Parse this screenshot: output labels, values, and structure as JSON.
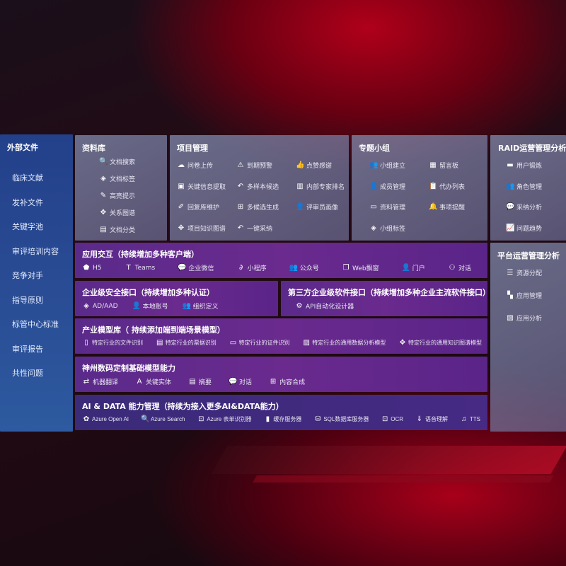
{
  "left": {
    "title": "外部文件",
    "items": [
      "临床文献",
      "发补文件",
      "关键字池",
      "审评培训内容",
      "竞争对手",
      "指导原则",
      "标管中心标准",
      "审评报告",
      "共性问题"
    ]
  },
  "library": {
    "title": "资料库",
    "items": [
      {
        "icon": "document-search-icon",
        "g": "🔍",
        "label": "文档搜索"
      },
      {
        "icon": "tag-icon",
        "g": "◈",
        "label": "文档标签"
      },
      {
        "icon": "pen-icon",
        "g": "✎",
        "label": "高亮提示"
      },
      {
        "icon": "graph-icon",
        "g": "✥",
        "label": "关系图谱"
      },
      {
        "icon": "documents-icon",
        "g": "▤",
        "label": "文档分类"
      }
    ]
  },
  "project": {
    "title": "项目管理",
    "items": [
      {
        "icon": "cloud-upload-icon",
        "g": "☁",
        "label": "问卷上传"
      },
      {
        "icon": "alarm-icon",
        "g": "⚠",
        "label": "到期预警"
      },
      {
        "icon": "thumbs-up-icon",
        "g": "👍",
        "label": "点赞感谢"
      },
      {
        "icon": "window-icon",
        "g": "▣",
        "label": "关键信息提取"
      },
      {
        "icon": "reply-icon",
        "g": "↶",
        "label": "多样本候选"
      },
      {
        "icon": "ranking-icon",
        "g": "▥",
        "label": "内部专家排名"
      },
      {
        "icon": "edit-icon",
        "g": "✐",
        "label": "回复库维护"
      },
      {
        "icon": "puzzle-icon",
        "g": "⊞",
        "label": "多候选生成"
      },
      {
        "icon": "user-icon",
        "g": "👤",
        "label": "评审员画像"
      },
      {
        "icon": "network-icon",
        "g": "✥",
        "label": "项目知识图谱"
      },
      {
        "icon": "reply-icon",
        "g": "↶",
        "label": "一键采纳"
      }
    ]
  },
  "group": {
    "title": "专题小组",
    "items": [
      {
        "icon": "users-icon",
        "g": "👥",
        "label": "小组建立"
      },
      {
        "icon": "bbs-icon",
        "g": "▦",
        "label": "留言板"
      },
      {
        "icon": "add-user-icon",
        "g": "👤",
        "label": "成员管理"
      },
      {
        "icon": "clipboard-icon",
        "g": "📋",
        "label": "代办列表"
      },
      {
        "icon": "folder-icon",
        "g": "▭",
        "label": "资料管理"
      },
      {
        "icon": "bell-icon",
        "g": "🔔",
        "label": "事项提醒"
      },
      {
        "icon": "tag-icon",
        "g": "◈",
        "label": "小组标签"
      }
    ]
  },
  "raid": {
    "title": "RAID运营管理分析",
    "items": [
      {
        "icon": "id-card-icon",
        "g": "▬",
        "label": "用户锻炼"
      },
      {
        "icon": "users-icon",
        "g": "👥",
        "label": "角色管理"
      },
      {
        "icon": "qa-icon",
        "g": "💬",
        "label": "采纳分析"
      },
      {
        "icon": "trend-icon",
        "g": "📈",
        "label": "问题趋势"
      }
    ]
  },
  "platform": {
    "title": "平台运营管理分析",
    "items": [
      {
        "icon": "list-icon",
        "g": "☰",
        "label": "资源分配"
      },
      {
        "icon": "apps-icon",
        "g": "▚",
        "label": "应用管理"
      },
      {
        "icon": "chart-icon",
        "g": "▧",
        "label": "应用分析"
      }
    ]
  },
  "interaction": {
    "title": "应用交互（持续增加多种客户端）",
    "items": [
      {
        "icon": "html5-icon",
        "g": "⬟",
        "label": "H5"
      },
      {
        "icon": "teams-icon",
        "g": "T",
        "label": "Teams"
      },
      {
        "icon": "wechat-icon",
        "g": "💬",
        "label": "企业微信"
      },
      {
        "icon": "mini-program-icon",
        "g": "∂",
        "label": "小程序"
      },
      {
        "icon": "users-icon",
        "g": "👥",
        "label": "公众号"
      },
      {
        "icon": "window-icon",
        "g": "❐",
        "label": "Web飘窗"
      },
      {
        "icon": "portal-icon",
        "g": "👤",
        "label": "门户"
      },
      {
        "icon": "chat-users-icon",
        "g": "⚇",
        "label": "对话"
      }
    ]
  },
  "security": {
    "title": "企业级安全接口（持续增加多种认证）",
    "items": [
      {
        "icon": "ad-icon",
        "g": "◈",
        "label": "AD/AAD"
      },
      {
        "icon": "local-account-icon",
        "g": "👤",
        "label": "本地账号"
      },
      {
        "icon": "org-icon",
        "g": "👥",
        "label": "组织定义"
      }
    ]
  },
  "thirdparty": {
    "title": "第三方企业级软件接口（持续增加多种企业主流软件接口）",
    "items": [
      {
        "icon": "gear-icon",
        "g": "⚙",
        "label": "API自动化设计器"
      }
    ]
  },
  "industry": {
    "title": "产业模型库（ 持续添加端到端场景模型）",
    "items": [
      {
        "icon": "file-icon",
        "g": "▯",
        "label": "特定行业的文件识别"
      },
      {
        "icon": "receipt-icon",
        "g": "▤",
        "label": "特定行业的票据识别"
      },
      {
        "icon": "id-card-icon",
        "g": "▭",
        "label": "特定行业的证件识别"
      },
      {
        "icon": "data-analysis-icon",
        "g": "▨",
        "label": "特定行业的通用数据分析模型"
      },
      {
        "icon": "network-icon",
        "g": "✥",
        "label": "特定行业的通用知识图谱模型"
      }
    ]
  },
  "foundation": {
    "title": "神州数码定制基础模型能力",
    "items": [
      {
        "icon": "translate-icon",
        "g": "⇄",
        "label": "机器翻译"
      },
      {
        "icon": "entity-icon",
        "g": "A",
        "label": "关键实体"
      },
      {
        "icon": "summary-icon",
        "g": "▤",
        "label": "摘要"
      },
      {
        "icon": "chat-icon",
        "g": "💬",
        "label": "对话"
      },
      {
        "icon": "puzzle-icon",
        "g": "⊞",
        "label": "内容合成"
      }
    ]
  },
  "ai": {
    "title": "AI & DATA 能力管理（持续为接入更多AI&DATA能力）",
    "items": [
      {
        "icon": "openai-icon",
        "g": "✿",
        "label": "Azure Open AI"
      },
      {
        "icon": "search-icon",
        "g": "🔍",
        "label": "Azure Search"
      },
      {
        "icon": "form-recognizer-icon",
        "g": "⊡",
        "label": "Azure 表单识别器"
      },
      {
        "icon": "cache-icon",
        "g": "▮",
        "label": "缓存服务器"
      },
      {
        "icon": "database-icon",
        "g": "⛁",
        "label": "SQL数据库服务器"
      },
      {
        "icon": "ocr-icon",
        "g": "⊡",
        "label": "OCR"
      },
      {
        "icon": "speech-icon",
        "g": "⇓",
        "label": "语音理解"
      },
      {
        "icon": "tts-icon",
        "g": "♫",
        "label": "TTS"
      }
    ]
  }
}
